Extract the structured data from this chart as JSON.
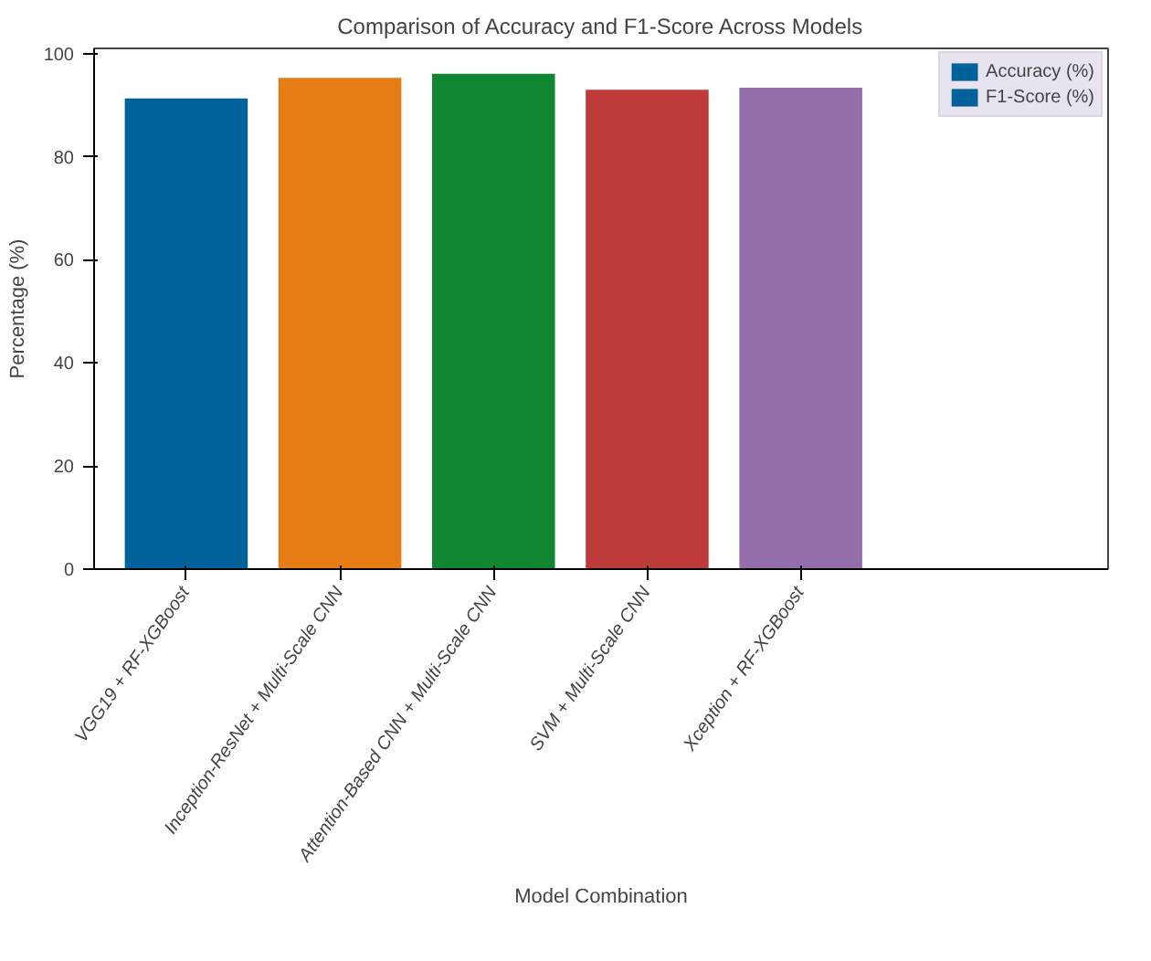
{
  "chart_data": {
    "type": "bar",
    "title": "Comparison of Accuracy and F1-Score Across Models",
    "xlabel": "Model Combination",
    "ylabel": "Percentage (%)",
    "categories": [
      "VGG19 + RF-XGBoost",
      "Inception-ResNet + Multi-Scale CNN",
      "Attention-Based CNN + Multi-Scale CNN",
      "SVM + Multi-Scale CNN",
      "Xception + RF-XGBoost"
    ],
    "series": [
      {
        "name": "Accuracy (%)",
        "color": "#00629b",
        "values": [
          null,
          null,
          null,
          null,
          null
        ]
      },
      {
        "name": "F1-Score (%)",
        "color": "#00629b",
        "colors": [
          "#00629b",
          "#e67c16",
          "#108632",
          "#bd3b3b",
          "#936eab"
        ],
        "values": [
          91.3,
          95.3,
          96.1,
          93.0,
          93.4
        ]
      }
    ],
    "ylim": [
      0,
      101
    ],
    "yticks": [
      0,
      20,
      40,
      60,
      80,
      100
    ],
    "legend": "top right"
  }
}
